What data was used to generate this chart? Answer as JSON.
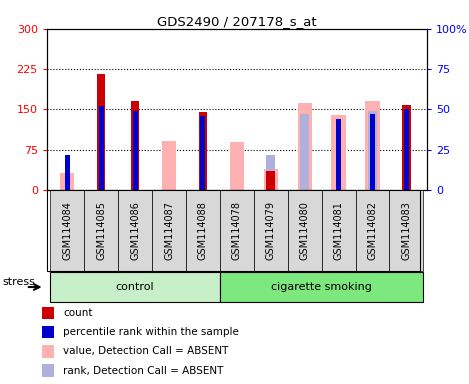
{
  "title": "GDS2490 / 207178_s_at",
  "samples": [
    "GSM114084",
    "GSM114085",
    "GSM114086",
    "GSM114087",
    "GSM114088",
    "GSM114078",
    "GSM114079",
    "GSM114080",
    "GSM114081",
    "GSM114082",
    "GSM114083"
  ],
  "count": [
    0,
    215,
    165,
    0,
    145,
    0,
    35,
    0,
    0,
    0,
    158
  ],
  "percentile_rank": [
    22,
    52,
    49,
    0,
    46,
    0,
    0,
    0,
    44,
    47,
    50
  ],
  "value_absent": [
    32,
    0,
    0,
    91,
    0,
    90,
    40,
    162,
    140,
    165,
    0
  ],
  "rank_absent": [
    0,
    0,
    0,
    0,
    0,
    0,
    22,
    47,
    0,
    49,
    0
  ],
  "groups": [
    "control",
    "control",
    "control",
    "control",
    "control",
    "cigarette smoking",
    "cigarette smoking",
    "cigarette smoking",
    "cigarette smoking",
    "cigarette smoking",
    "cigarette smoking"
  ],
  "control_color": "#c8f0c8",
  "smoking_color": "#7de87d",
  "bar_width": 0.3,
  "left_ylim": [
    0,
    300
  ],
  "right_ylim": [
    0,
    100
  ],
  "left_yticks": [
    0,
    75,
    150,
    225,
    300
  ],
  "right_yticks": [
    0,
    25,
    50,
    75,
    100
  ],
  "left_ytick_labels": [
    "0",
    "75",
    "150",
    "225",
    "300"
  ],
  "right_ytick_labels": [
    "0",
    "25",
    "50",
    "75",
    "100%"
  ],
  "color_count": "#cc0000",
  "color_rank": "#0000cc",
  "color_value_absent": "#ffb0b0",
  "color_rank_absent": "#b0b0dd",
  "grid_color": "black",
  "grid_lines": [
    75,
    150,
    225
  ],
  "xtick_bg": "#d8d8d8",
  "n_control": 5,
  "n_total": 11
}
